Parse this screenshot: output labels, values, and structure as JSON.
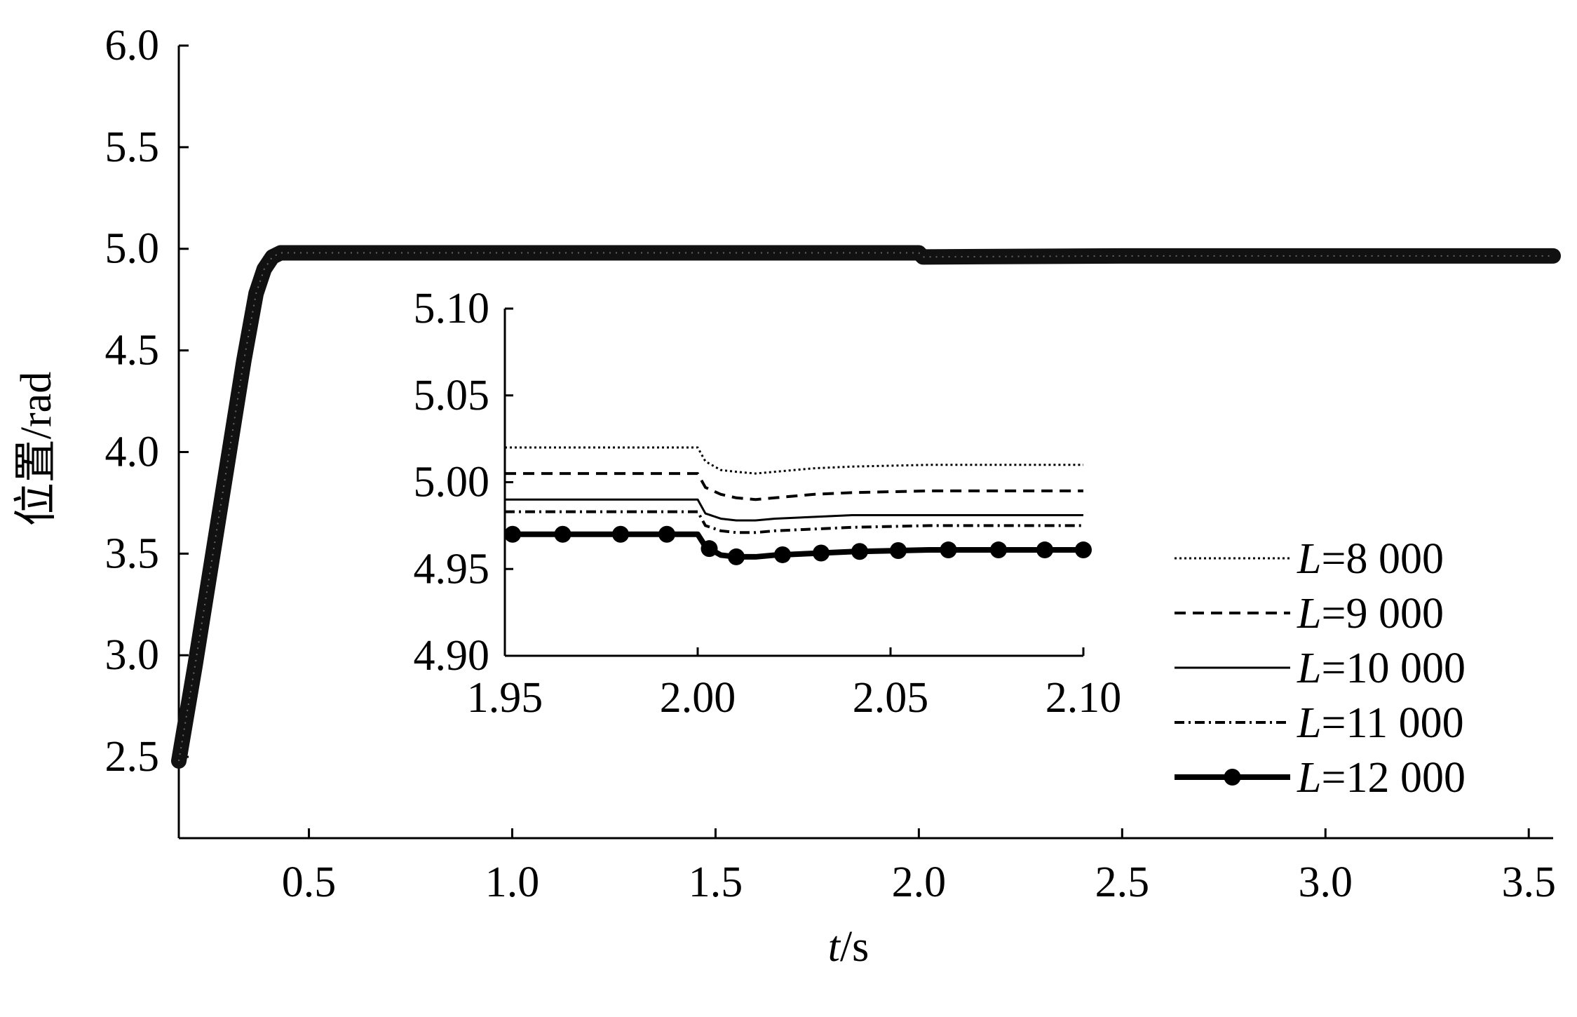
{
  "chart_data": [
    {
      "type": "line",
      "role": "main",
      "title": "",
      "xlabel_var": "t",
      "xlabel_unit": "/s",
      "ylabel": "位置/rad",
      "xlim": [
        0.18,
        3.56
      ],
      "ylim": [
        2.1,
        6.0
      ],
      "xticks": [
        "0.5",
        "1.0",
        "1.5",
        "2.0",
        "2.5",
        "3.0",
        "3.5"
      ],
      "yticks": [
        "2.5",
        "3.0",
        "3.5",
        "4.0",
        "4.5",
        "5.0",
        "5.5",
        "6.0"
      ],
      "series": [
        {
          "x": [
            0.18,
            0.22,
            0.26,
            0.3,
            0.34,
            0.37,
            0.39,
            0.41,
            0.43,
            0.46,
            0.6,
            1.0,
            1.5,
            2.0,
            2.01,
            2.5,
            3.0,
            3.56
          ],
          "y": [
            2.48,
            2.95,
            3.45,
            3.95,
            4.45,
            4.78,
            4.9,
            4.96,
            4.98,
            4.98,
            4.98,
            4.98,
            4.98,
            4.98,
            4.96,
            4.965,
            4.965,
            4.965
          ]
        }
      ]
    },
    {
      "type": "line",
      "role": "inset",
      "xlim": [
        1.95,
        2.1
      ],
      "ylim": [
        4.9,
        5.1
      ],
      "xticks": [
        "1.95",
        "2.00",
        "2.05",
        "2.10"
      ],
      "yticks": [
        "4.90",
        "4.95",
        "5.00",
        "5.05",
        "5.10"
      ],
      "x": [
        1.95,
        2.0,
        2.002,
        2.006,
        2.01,
        2.015,
        2.02,
        2.03,
        2.04,
        2.06,
        2.08,
        2.1
      ],
      "series": [
        {
          "name": "L=8 000",
          "style": "dotted",
          "values": [
            5.02,
            5.02,
            5.012,
            5.007,
            5.006,
            5.005,
            5.006,
            5.008,
            5.009,
            5.01,
            5.01,
            5.01
          ]
        },
        {
          "name": "L=9 000",
          "style": "dashed",
          "values": [
            5.005,
            5.005,
            4.997,
            4.993,
            4.991,
            4.99,
            4.991,
            4.993,
            4.994,
            4.995,
            4.995,
            4.995
          ]
        },
        {
          "name": "L=10 000",
          "style": "solid",
          "values": [
            4.99,
            4.99,
            4.982,
            4.979,
            4.978,
            4.978,
            4.979,
            4.98,
            4.981,
            4.981,
            4.981,
            4.981
          ]
        },
        {
          "name": "L=11 000",
          "style": "dashdot",
          "values": [
            4.983,
            4.983,
            4.975,
            4.972,
            4.971,
            4.971,
            4.972,
            4.973,
            4.974,
            4.975,
            4.975,
            4.975
          ]
        },
        {
          "name": "L=12 000",
          "style": "bold-marker",
          "values": [
            4.97,
            4.97,
            4.963,
            4.958,
            4.957,
            4.957,
            4.958,
            4.959,
            4.96,
            4.961,
            4.961,
            4.961
          ]
        }
      ],
      "marker_x": [
        1.952,
        1.965,
        1.98,
        1.992,
        2.003,
        2.01,
        2.022,
        2.032,
        2.042,
        2.052,
        2.065,
        2.078,
        2.09,
        2.1
      ]
    }
  ],
  "legend": {
    "placement": "right",
    "items": [
      {
        "var": "L",
        "text": "=8 000"
      },
      {
        "var": "L",
        "text": "=9 000"
      },
      {
        "var": "L",
        "text": "=10 000"
      },
      {
        "var": "L",
        "text": "=11 000"
      },
      {
        "var": "L",
        "text": "=12 000"
      }
    ]
  }
}
